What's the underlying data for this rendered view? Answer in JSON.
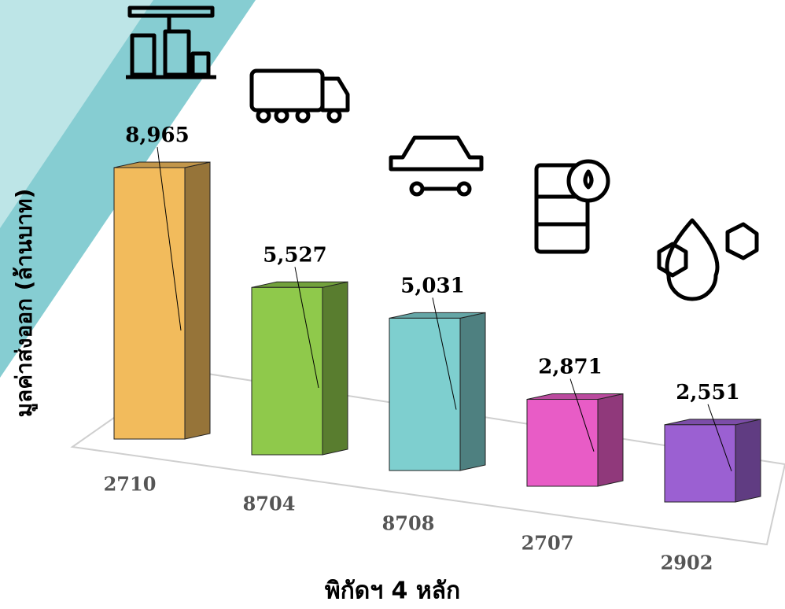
{
  "chart_data": {
    "type": "bar3d",
    "categories": [
      "2710",
      "8704",
      "8708",
      "2707",
      "2902"
    ],
    "values": [
      8965,
      5527,
      5031,
      2871,
      2551
    ],
    "value_labels": [
      "8,965",
      "5,527",
      "5,031",
      "2,871",
      "2,551"
    ],
    "colors": [
      "#f2bb5c",
      "#8fc94b",
      "#7ecfcf",
      "#e85cc6",
      "#9b60d2"
    ],
    "y_label": "มูลค่าส่งออก (ล้านบาท)",
    "x_label": "พิกัดฯ 4 หลัก"
  }
}
